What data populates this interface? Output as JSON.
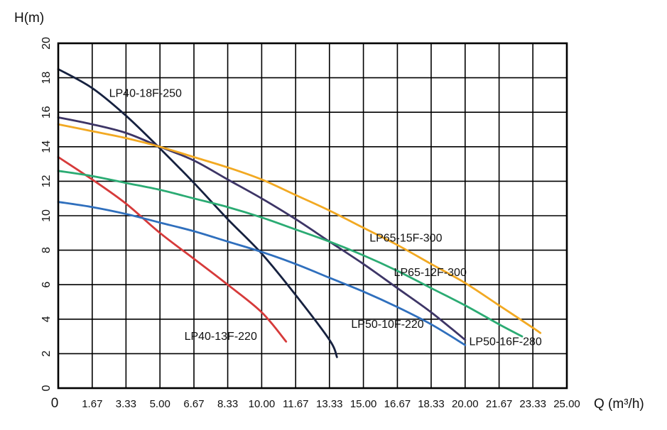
{
  "chart_data": {
    "type": "line",
    "xlabel": "Q (m³/h)",
    "ylabel": "H(m)",
    "xlim": [
      0,
      25
    ],
    "ylim": [
      0,
      20
    ],
    "x_ticks": [
      0,
      1.67,
      3.33,
      5,
      6.67,
      8.33,
      10,
      11.67,
      13.33,
      15,
      16.67,
      18.33,
      20,
      21.67,
      23.33,
      25
    ],
    "x_tick_labels": [
      "0",
      "1.67",
      "3.33",
      "5.00",
      "6.67",
      "8.33",
      "10.00",
      "11.67",
      "13.33",
      "15.00",
      "16.67",
      "18.33",
      "20.00",
      "21.67",
      "23.33",
      "25.00"
    ],
    "y_ticks": [
      0,
      2,
      4,
      6,
      8,
      10,
      12,
      14,
      16,
      18,
      20
    ],
    "y_tick_labels": [
      "0",
      "2",
      "4",
      "6",
      "8",
      "10",
      "12",
      "14",
      "16",
      "18",
      "20"
    ],
    "grid": true,
    "legend": "inline labels",
    "series": [
      {
        "name": "LP40-18F-250",
        "color": "#16213f",
        "points": [
          [
            0,
            18.5
          ],
          [
            1.67,
            17.4
          ],
          [
            3.33,
            15.8
          ],
          [
            5.0,
            13.9
          ],
          [
            6.67,
            11.9
          ],
          [
            8.33,
            9.8
          ],
          [
            10.0,
            7.8
          ],
          [
            11.67,
            5.4
          ],
          [
            13.33,
            2.8
          ],
          [
            13.7,
            1.8
          ]
        ]
      },
      {
        "name": "LP40-13F-220",
        "color": "#d63a3a",
        "points": [
          [
            0,
            13.4
          ],
          [
            1.67,
            12.1
          ],
          [
            3.33,
            10.7
          ],
          [
            5.0,
            9.0
          ],
          [
            6.67,
            7.5
          ],
          [
            8.33,
            6.0
          ],
          [
            10.0,
            4.4
          ],
          [
            11.2,
            2.7
          ]
        ]
      },
      {
        "name": "LP50-10F-220",
        "color": "#2f6fbd",
        "points": [
          [
            0,
            10.8
          ],
          [
            1.67,
            10.5
          ],
          [
            3.33,
            10.1
          ],
          [
            5.0,
            9.6
          ],
          [
            6.67,
            9.1
          ],
          [
            8.33,
            8.5
          ],
          [
            10.0,
            7.9
          ],
          [
            11.67,
            7.2
          ],
          [
            13.33,
            6.4
          ],
          [
            15.0,
            5.6
          ],
          [
            16.67,
            4.7
          ],
          [
            18.33,
            3.7
          ],
          [
            20.0,
            2.5
          ]
        ]
      },
      {
        "name": "LP50-16F-280",
        "color": "#3d3566",
        "points": [
          [
            0,
            15.7
          ],
          [
            1.67,
            15.3
          ],
          [
            3.33,
            14.8
          ],
          [
            5.0,
            14.0
          ],
          [
            6.67,
            13.2
          ],
          [
            8.33,
            12.1
          ],
          [
            10.0,
            11.0
          ],
          [
            11.67,
            9.8
          ],
          [
            13.33,
            8.5
          ],
          [
            15.0,
            7.2
          ],
          [
            16.67,
            5.8
          ],
          [
            18.33,
            4.4
          ],
          [
            20.0,
            2.8
          ]
        ]
      },
      {
        "name": "LP65-12F-300",
        "color": "#2bab73",
        "points": [
          [
            0,
            12.6
          ],
          [
            1.67,
            12.3
          ],
          [
            3.33,
            11.9
          ],
          [
            5.0,
            11.5
          ],
          [
            6.67,
            11.0
          ],
          [
            8.33,
            10.5
          ],
          [
            10.0,
            9.9
          ],
          [
            11.67,
            9.2
          ],
          [
            13.33,
            8.5
          ],
          [
            15.0,
            7.7
          ],
          [
            16.67,
            6.8
          ],
          [
            18.33,
            5.8
          ],
          [
            20.0,
            4.8
          ],
          [
            21.67,
            3.7
          ],
          [
            22.8,
            3.0
          ]
        ]
      },
      {
        "name": "LP65-15F-300",
        "color": "#f2a922",
        "points": [
          [
            0,
            15.3
          ],
          [
            1.67,
            14.9
          ],
          [
            3.33,
            14.5
          ],
          [
            5.0,
            14.0
          ],
          [
            6.67,
            13.4
          ],
          [
            8.33,
            12.8
          ],
          [
            10.0,
            12.1
          ],
          [
            11.67,
            11.2
          ],
          [
            13.33,
            10.3
          ],
          [
            15.0,
            9.3
          ],
          [
            16.67,
            8.3
          ],
          [
            18.33,
            7.2
          ],
          [
            20.0,
            6.1
          ],
          [
            21.67,
            4.8
          ],
          [
            23.33,
            3.5
          ],
          [
            23.7,
            3.2
          ]
        ]
      }
    ],
    "annotations": [
      {
        "text": "LP40-18F-250",
        "series": "LP40-18F-250",
        "x": 2.5,
        "y": 16.9
      },
      {
        "text": "LP40-13F-220",
        "series": "LP40-13F-220",
        "x": 6.2,
        "y": 2.8
      },
      {
        "text": "LP50-10F-220",
        "series": "LP50-10F-220",
        "x": 14.4,
        "y": 3.5
      },
      {
        "text": "LP50-16F-280",
        "series": "LP50-16F-280",
        "x": 20.2,
        "y": 2.5
      },
      {
        "text": "LP65-12F-300",
        "series": "LP65-12F-300",
        "x": 16.5,
        "y": 6.5
      },
      {
        "text": "LP65-15F-300",
        "series": "LP65-15F-300",
        "x": 15.3,
        "y": 8.5
      }
    ]
  }
}
